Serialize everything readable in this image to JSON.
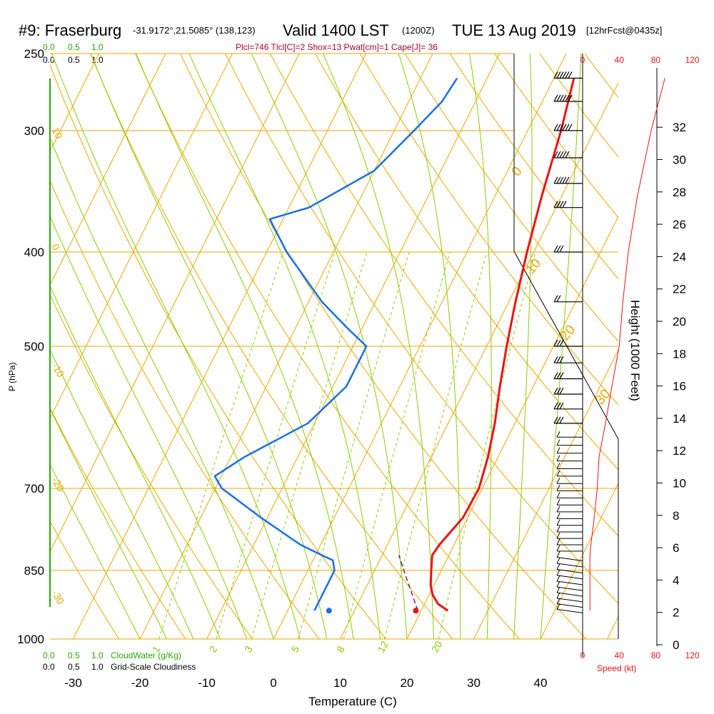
{
  "title": {
    "station": "#9: Fraserburg",
    "coords": "-31.9172°,21.5085° (138,123)",
    "valid": "Valid 1400 LST",
    "utc": "(1200Z)",
    "date": "TUE 13 Aug 2019",
    "forecast": "[12hrFcst@0435z]"
  },
  "indices": "Plcl=746 Tlcl[C]=2 Shox=13 Pwat[cm]=1 Cape[J]= 36",
  "cloud_scale": {
    "cloudwater_ticks": [
      "0.0",
      "0.5",
      "1.0"
    ],
    "cloudiness_ticks": [
      "0.0",
      "0.5",
      "1.0"
    ],
    "cloudwater_label": "CloudWater (g/Kg)",
    "cloudiness_label": "Grid-Scale Cloudiness"
  },
  "speed_axis": {
    "ticks": [
      "0",
      "40",
      "80",
      "120"
    ],
    "label": "Speed (kt)"
  },
  "colors": {
    "isotherm": "#e8a800",
    "dry_adiabat": "#e8a800",
    "moist_adiabat": "#88cc00",
    "mixing_ratio": "#88cc00",
    "temperature": "#ee1111",
    "dewpoint": "#1a6fe8",
    "parcel": "#6a1a8a",
    "cloud": "#22aa00"
  },
  "chart_data": {
    "type": "line",
    "xlabel": "Temperature (C)",
    "ylabel": "P (hPa)",
    "y2label": "Height (1000 Feet)",
    "x_ticks": [
      -30,
      -20,
      -10,
      0,
      10,
      20,
      30,
      40
    ],
    "y_ticks": [
      250,
      300,
      400,
      500,
      700,
      850,
      1000
    ],
    "height_ticks": [
      0,
      2,
      4,
      6,
      8,
      10,
      12,
      14,
      16,
      18,
      20,
      22,
      24,
      26,
      28,
      30,
      32
    ],
    "isotherm_labels": [
      "10",
      "0",
      "-10",
      "-20",
      "-30"
    ],
    "dry_adiabat_labels": [
      "0",
      "10",
      "20",
      "30"
    ],
    "mixing_ratio_labels": [
      "1",
      "2",
      "3",
      "5",
      "8",
      "12",
      "20"
    ],
    "series": [
      {
        "name": "Temperature",
        "points": [
          [
            3,
            265
          ],
          [
            5,
            300
          ],
          [
            7,
            350
          ],
          [
            9,
            400
          ],
          [
            11,
            450
          ],
          [
            13,
            500
          ],
          [
            15,
            550
          ],
          [
            17,
            600
          ],
          [
            18.5,
            650
          ],
          [
            19.5,
            700
          ],
          [
            19.3,
            750
          ],
          [
            17.8,
            800
          ],
          [
            17.5,
            820
          ],
          [
            18.5,
            850
          ],
          [
            19.5,
            880
          ],
          [
            20.5,
            900
          ],
          [
            22,
            920
          ],
          [
            24,
            935
          ]
        ]
      },
      {
        "name": "Dewpoint",
        "points": [
          [
            -14.5,
            265
          ],
          [
            -15,
            280
          ],
          [
            -17,
            300
          ],
          [
            -20,
            330
          ],
          [
            -27,
            360
          ],
          [
            -32,
            370
          ],
          [
            -27,
            400
          ],
          [
            -18,
            450
          ],
          [
            -12,
            480
          ],
          [
            -8,
            500
          ],
          [
            -8,
            550
          ],
          [
            -11,
            600
          ],
          [
            -18,
            650
          ],
          [
            -21,
            680
          ],
          [
            -19,
            700
          ],
          [
            -11,
            750
          ],
          [
            -3,
            800
          ],
          [
            1,
            820
          ],
          [
            3,
            830
          ],
          [
            4,
            850
          ],
          [
            4,
            900
          ],
          [
            4,
            930
          ],
          [
            4,
            935
          ]
        ]
      },
      {
        "name": "Parcel",
        "points": [
          [
            19.5,
            935
          ],
          [
            15,
            860
          ],
          [
            12.5,
            820
          ]
        ]
      }
    ],
    "surface_dewpoint": 6.2,
    "surface_temperature": 19.2,
    "wind_speed_profile": [
      [
        8,
        935
      ],
      [
        8,
        900
      ],
      [
        8,
        850
      ],
      [
        8,
        820
      ],
      [
        9,
        800
      ],
      [
        12,
        760
      ],
      [
        16,
        700
      ],
      [
        18,
        650
      ],
      [
        25,
        600
      ],
      [
        32,
        550
      ],
      [
        40,
        500
      ],
      [
        44,
        450
      ],
      [
        50,
        400
      ],
      [
        60,
        350
      ],
      [
        75,
        300
      ],
      [
        90,
        265
      ]
    ]
  }
}
